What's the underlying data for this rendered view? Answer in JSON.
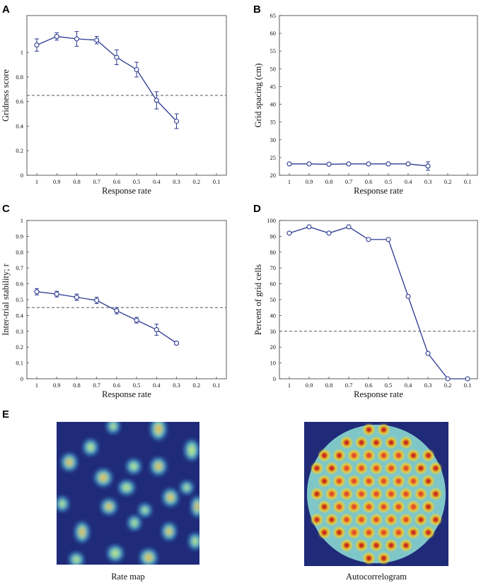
{
  "panels": {
    "A": {
      "label": "A"
    },
    "B": {
      "label": "B"
    },
    "C": {
      "label": "C"
    },
    "D": {
      "label": "D"
    },
    "E": {
      "label": "E"
    }
  },
  "images": {
    "rate_map": {
      "caption": "Rate map"
    },
    "autocorrelogram": {
      "caption": "Autocorrelogram"
    }
  },
  "colors": {
    "series": "#2b3990",
    "threshold": "#555555",
    "map_background": "#1f2a78"
  },
  "chart_data": [
    {
      "id": "A",
      "type": "line",
      "title": "",
      "xlabel": "Response rate",
      "ylabel": "Gridness score",
      "x_ticks": [
        "1",
        "0.9",
        "0.8",
        "0.7",
        "0.6",
        "0.5",
        "0.4",
        "0.3",
        "0.2",
        "0.1"
      ],
      "y_ticks": [
        "0",
        "0.2",
        "0.4",
        "0.6",
        "0.8",
        "1"
      ],
      "ylim": [
        0,
        1.3
      ],
      "x": [
        1,
        0.9,
        0.8,
        0.7,
        0.6,
        0.5,
        0.4,
        0.3
      ],
      "values": [
        1.06,
        1.13,
        1.11,
        1.1,
        0.96,
        0.86,
        0.61,
        0.44
      ],
      "errors": [
        0.05,
        0.03,
        0.06,
        0.03,
        0.06,
        0.06,
        0.07,
        0.06
      ],
      "threshold": 0.65
    },
    {
      "id": "B",
      "type": "line",
      "title": "",
      "xlabel": "Response rate",
      "ylabel": "Grid spacing (cm)",
      "x_ticks": [
        "1",
        "0.9",
        "0.8",
        "0.7",
        "0.6",
        "0.5",
        "0.4",
        "0.3",
        "0.2",
        "0.1"
      ],
      "y_ticks": [
        "20",
        "25",
        "30",
        "35",
        "40",
        "45",
        "50",
        "55",
        "60",
        "65"
      ],
      "ylim": [
        20,
        65
      ],
      "x": [
        1,
        0.9,
        0.8,
        0.7,
        0.6,
        0.5,
        0.4,
        0.3
      ],
      "values": [
        23.2,
        23.2,
        23.1,
        23.2,
        23.2,
        23.2,
        23.2,
        22.6
      ],
      "errors": [
        0,
        0,
        0,
        0,
        0,
        0,
        0,
        1.2
      ],
      "threshold": null
    },
    {
      "id": "C",
      "type": "line",
      "title": "",
      "xlabel": "Response rate",
      "ylabel": "Inter-trial stability; r",
      "x_ticks": [
        "1",
        "0.9",
        "0.8",
        "0.7",
        "0.6",
        "0.5",
        "0.4",
        "0.3",
        "0.2",
        "0.1"
      ],
      "y_ticks": [
        "0",
        "0.1",
        "0.2",
        "0.3",
        "0.4",
        "0.5",
        "0.6",
        "0.7",
        "0.8",
        "0.9",
        "1"
      ],
      "ylim": [
        0,
        1
      ],
      "x": [
        1,
        0.9,
        0.8,
        0.7,
        0.6,
        0.5,
        0.4,
        0.3
      ],
      "values": [
        0.55,
        0.535,
        0.515,
        0.495,
        0.43,
        0.37,
        0.31,
        0.225
      ],
      "errors": [
        0.02,
        0.018,
        0.02,
        0.02,
        0.02,
        0.018,
        0.035,
        0.01
      ],
      "threshold": 0.45
    },
    {
      "id": "D",
      "type": "line",
      "title": "",
      "xlabel": "Response rate",
      "ylabel": "Percent of grid cells",
      "x_ticks": [
        "1",
        "0.9",
        "0.8",
        "0.7",
        "0.6",
        "0.5",
        "0.4",
        "0.3",
        "0.2",
        "0.1"
      ],
      "y_ticks": [
        "0",
        "10",
        "20",
        "30",
        "40",
        "50",
        "60",
        "70",
        "80",
        "90",
        "100"
      ],
      "ylim": [
        0,
        100
      ],
      "x": [
        1,
        0.9,
        0.8,
        0.7,
        0.6,
        0.5,
        0.4,
        0.3,
        0.2,
        0.1
      ],
      "values": [
        92,
        96,
        92,
        96,
        88,
        88,
        52,
        16,
        0,
        0
      ],
      "errors": [
        0,
        0,
        0,
        0,
        0,
        0,
        0,
        0,
        0,
        0
      ],
      "threshold": 30
    }
  ]
}
